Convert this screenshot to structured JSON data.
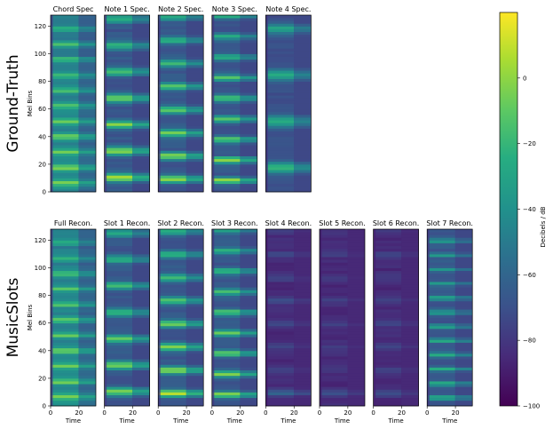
{
  "chart_data": {
    "type": "heatmap",
    "rows": [
      {
        "label": "Ground-Truth",
        "ylabel": "Mel Bins",
        "panels": [
          {
            "title": "Chord Spec",
            "kind": "dense",
            "intensity": 1.0
          },
          {
            "title": "Note 1 Spec.",
            "kind": "harmonic",
            "intensity": 0.95
          },
          {
            "title": "Note 2 Spec.",
            "kind": "harmonic",
            "intensity": 0.92
          },
          {
            "title": "Note 3 Spec.",
            "kind": "harmonic",
            "intensity": 0.9
          },
          {
            "title": "Note 4 Spec.",
            "kind": "sparse",
            "intensity": 0.75
          }
        ]
      },
      {
        "label": "MusicSlots",
        "ylabel": "Mel Bins",
        "panels": [
          {
            "title": "Full Recon.",
            "kind": "dense",
            "intensity": 1.0
          },
          {
            "title": "Slot 1 Recon.",
            "kind": "harmonic",
            "intensity": 0.85
          },
          {
            "title": "Slot 2 Recon.",
            "kind": "harmonic",
            "intensity": 0.95
          },
          {
            "title": "Slot 3 Recon.",
            "kind": "harmonic",
            "intensity": 0.9
          },
          {
            "title": "Slot 4 Recon.",
            "kind": "faint",
            "intensity": 0.35
          },
          {
            "title": "Slot 5 Recon.",
            "kind": "faint",
            "intensity": 0.2
          },
          {
            "title": "Slot 6 Recon.",
            "kind": "faint",
            "intensity": 0.25
          },
          {
            "title": "Slot 7 Recon.",
            "kind": "harmonic",
            "intensity": 0.65
          }
        ]
      }
    ],
    "xlabel": "Time",
    "xlim": [
      0,
      32
    ],
    "xticks": [
      0,
      20
    ],
    "ylim": [
      0,
      128
    ],
    "yticks": [
      0,
      20,
      40,
      60,
      80,
      100,
      120
    ],
    "colorbar": {
      "label": "Decibels / dB",
      "colormap": "viridis",
      "range": [
        -100,
        20
      ],
      "ticks": [
        0,
        -20,
        -40,
        -60,
        -80,
        -100
      ]
    }
  }
}
